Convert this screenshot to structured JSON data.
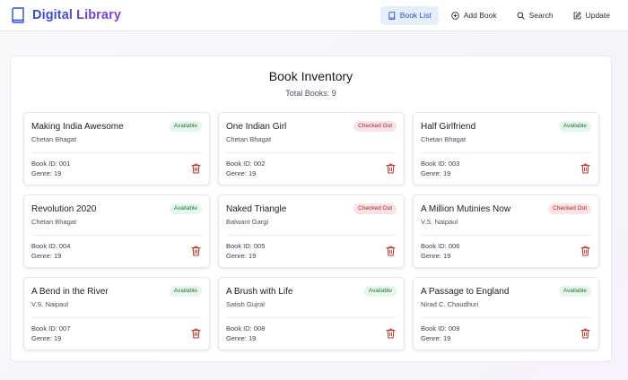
{
  "app": {
    "title": "Digital Library",
    "brand_icon": "book-icon",
    "colors": {
      "brand_start": "#2a4fd6",
      "brand_end": "#8a3fd1",
      "active_nav_bg": "#e6eefb",
      "available": "#1e7a3a",
      "checked_out": "#a32433",
      "delete": "#c0392b"
    }
  },
  "nav": {
    "items": [
      {
        "label": "Book List",
        "icon": "book-icon",
        "active": true
      },
      {
        "label": "Add Book",
        "icon": "plus-circle-icon",
        "active": false
      },
      {
        "label": "Search",
        "icon": "search-icon",
        "active": false
      },
      {
        "label": "Update",
        "icon": "edit-icon",
        "active": false
      }
    ]
  },
  "inventory": {
    "title": "Book Inventory",
    "total_label": "Total Books: 9",
    "books": [
      {
        "title": "Making India Awesome",
        "author": "Chetan Bhagat",
        "status": "Available",
        "id_label": "Book ID: 001",
        "genre_label": "Genre: 19"
      },
      {
        "title": "One Indian Girl",
        "author": "Chetan Bhagat",
        "status": "Checked Out",
        "id_label": "Book ID: 002",
        "genre_label": "Genre: 19"
      },
      {
        "title": "Half Girlfriend",
        "author": "Chetan Bhagat",
        "status": "Available",
        "id_label": "Book ID: 003",
        "genre_label": "Genre: 19"
      },
      {
        "title": "Revolution 2020",
        "author": "Chetan Bhagat",
        "status": "Available",
        "id_label": "Book ID: 004",
        "genre_label": "Genre: 19"
      },
      {
        "title": "Naked Triangle",
        "author": "Balwant Gargi",
        "status": "Checked Out",
        "id_label": "Book ID: 005",
        "genre_label": "Genre: 19"
      },
      {
        "title": "A Million Mutinies Now",
        "author": "V.S. Naipaul",
        "status": "Checked Out",
        "id_label": "Book ID: 006",
        "genre_label": "Genre: 19"
      },
      {
        "title": "A Bend in the River",
        "author": "V.S. Naipaul",
        "status": "Available",
        "id_label": "Book ID: 007",
        "genre_label": "Genre: 19"
      },
      {
        "title": "A Brush with Life",
        "author": "Satish Gujral",
        "status": "Available",
        "id_label": "Book ID: 008",
        "genre_label": "Genre: 19"
      },
      {
        "title": "A Passage to England",
        "author": "Nirad C. Chaudhuri",
        "status": "Available",
        "id_label": "Book ID: 009",
        "genre_label": "Genre: 19"
      }
    ]
  }
}
